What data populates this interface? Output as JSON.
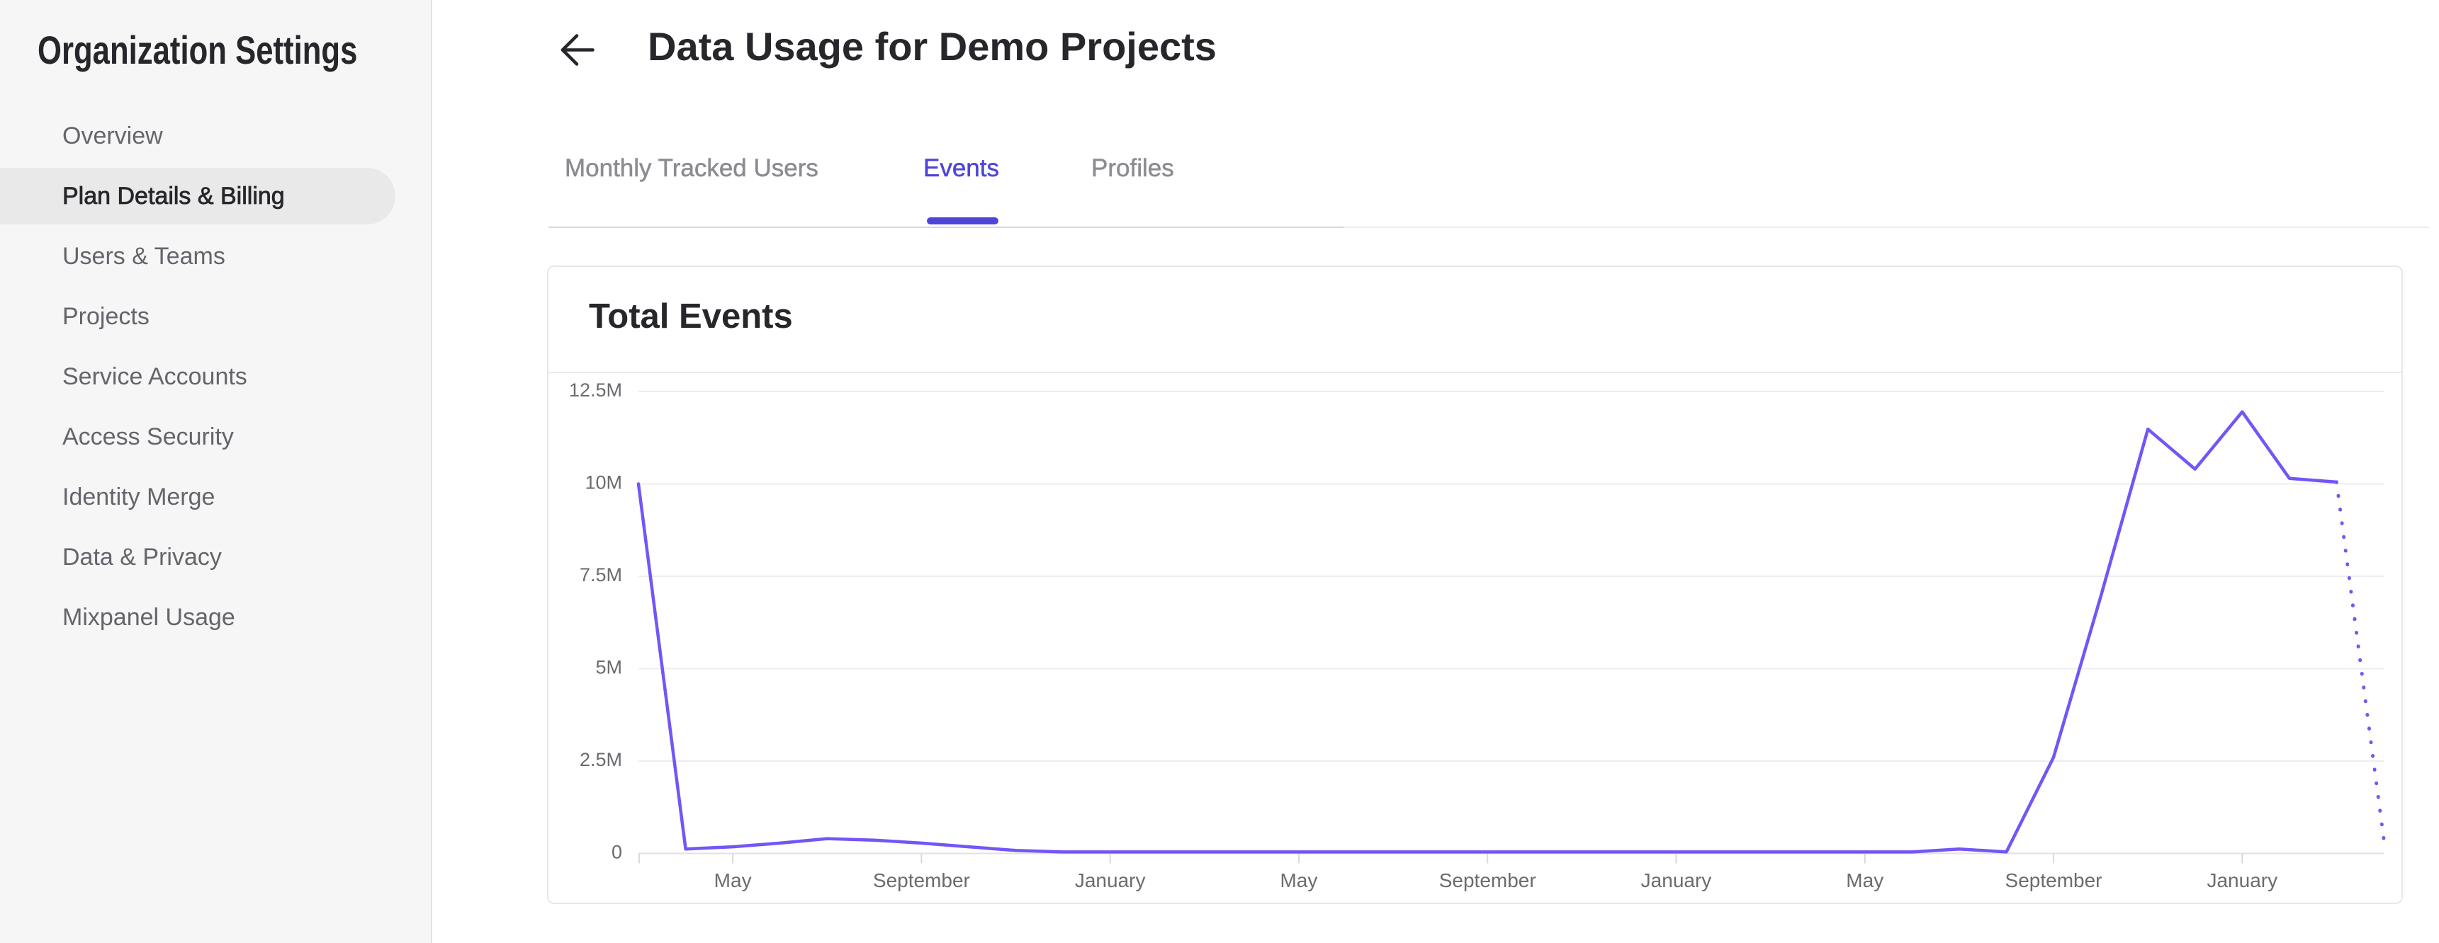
{
  "sidebar": {
    "title": "Organization Settings",
    "items": [
      {
        "label": "Overview",
        "selected": false
      },
      {
        "label": "Plan Details & Billing",
        "selected": true
      },
      {
        "label": "Users & Teams",
        "selected": false
      },
      {
        "label": "Projects",
        "selected": false
      },
      {
        "label": "Service Accounts",
        "selected": false
      },
      {
        "label": "Access Security",
        "selected": false
      },
      {
        "label": "Identity Merge",
        "selected": false
      },
      {
        "label": "Data & Privacy",
        "selected": false
      },
      {
        "label": "Mixpanel Usage",
        "selected": false
      }
    ]
  },
  "header": {
    "title": "Data Usage for Demo Projects"
  },
  "tabs": [
    {
      "label": "Monthly Tracked Users",
      "active": false
    },
    {
      "label": "Events",
      "active": true
    },
    {
      "label": "Profiles",
      "active": false
    }
  ],
  "colors": {
    "accent": "#4f44d9",
    "chart_line": "#7455f6"
  },
  "chart_data": {
    "type": "line",
    "title": "Total Events",
    "unit": "millions of events",
    "ylabel": "",
    "xlabel": "",
    "ylim": [
      0,
      12.5
    ],
    "grid": true,
    "legend": false,
    "y_tick_labels": [
      "12.5M",
      "10M",
      "7.5M",
      "5M",
      "2.5M",
      "0"
    ],
    "y_tick_values": [
      12.5,
      10,
      7.5,
      5,
      2.5,
      0
    ],
    "x_tick_labels": [
      "May",
      "September",
      "January",
      "May",
      "September",
      "January",
      "May",
      "September",
      "January"
    ],
    "x_tick_indices": [
      2,
      6,
      10,
      14,
      18,
      22,
      26,
      30,
      34
    ],
    "values_millions": [
      10.0,
      0.12,
      0.18,
      0.28,
      0.4,
      0.36,
      0.28,
      0.18,
      0.08,
      0.04,
      0.04,
      0.04,
      0.04,
      0.04,
      0.04,
      0.04,
      0.04,
      0.04,
      0.04,
      0.04,
      0.04,
      0.04,
      0.04,
      0.04,
      0.04,
      0.04,
      0.04,
      0.04,
      0.12,
      0.04,
      2.6,
      6.95,
      11.48,
      10.4,
      11.95,
      10.15,
      10.05,
      0.4
    ],
    "solid_until_index": 36,
    "projected_tail_style": "dotted"
  }
}
